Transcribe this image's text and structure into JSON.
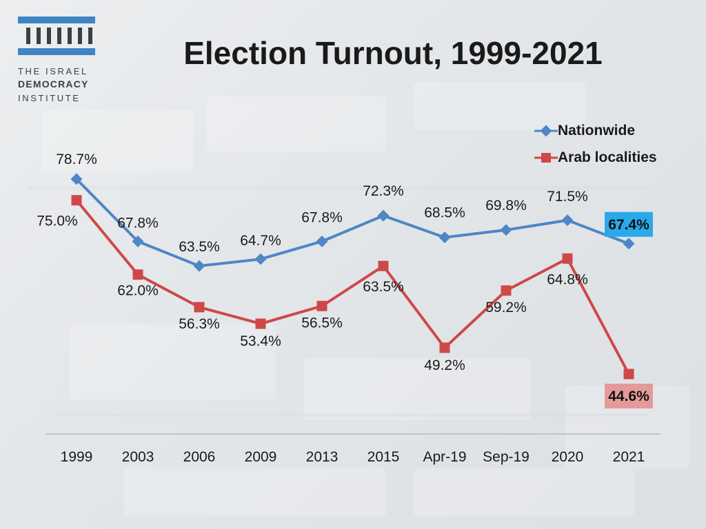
{
  "header": {
    "title": "Election Turnout, 1999-2021",
    "logo_line1": "THE ISRAEL",
    "logo_line2": "DEMOCRACY",
    "logo_line3": "INSTITUTE"
  },
  "colors": {
    "nationwide": "#4e86c6",
    "arab": "#cf4848",
    "highlight_blue": "#2aa9e8",
    "highlight_red": "#e49a9a",
    "logo_blue": "#3f84c5"
  },
  "chart_data": {
    "type": "line",
    "title": "Election Turnout, 1999-2021",
    "categories": [
      "1999",
      "2003",
      "2006",
      "2009",
      "2013",
      "2015",
      "Apr-19",
      "Sep-19",
      "2020",
      "2021"
    ],
    "series": [
      {
        "name": "Nationwide",
        "values": [
          78.7,
          67.8,
          63.5,
          64.7,
          67.8,
          72.3,
          68.5,
          69.8,
          71.5,
          67.4
        ],
        "labels": [
          "78.7%",
          "67.8%",
          "63.5%",
          "64.7%",
          "67.8%",
          "72.3%",
          "68.5%",
          "69.8%",
          "71.5%",
          "67.4%"
        ],
        "marker": "diamond"
      },
      {
        "name": "Arab localities",
        "values": [
          75.0,
          62.0,
          56.3,
          53.4,
          56.5,
          63.5,
          49.2,
          59.2,
          64.8,
          44.6
        ],
        "labels": [
          "75.0%",
          "62.0%",
          "56.3%",
          "53.4%",
          "56.5%",
          "63.5%",
          "49.2%",
          "59.2%",
          "64.8%",
          "44.6%"
        ],
        "marker": "square"
      }
    ],
    "ylim": [
      35,
      85
    ],
    "grid": false,
    "legend_position": "top-right",
    "highlighted_last_point": true
  }
}
